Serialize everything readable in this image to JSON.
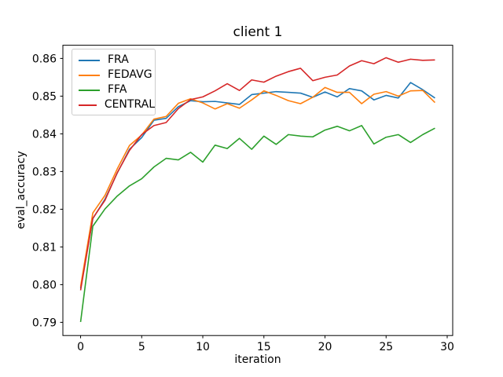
{
  "chart_data": {
    "type": "line",
    "title": "client 1",
    "xlabel": "iteration",
    "ylabel": "eval_accuracy",
    "x": [
      0,
      1,
      2,
      3,
      4,
      5,
      6,
      7,
      8,
      9,
      10,
      11,
      12,
      13,
      14,
      15,
      16,
      17,
      18,
      19,
      20,
      21,
      22,
      23,
      24,
      25,
      26,
      27,
      28,
      29
    ],
    "series": [
      {
        "name": "FRA",
        "color": "#1f77b4",
        "values": [
          0.799,
          0.8175,
          0.8227,
          0.8296,
          0.8359,
          0.839,
          0.8436,
          0.8441,
          0.8472,
          0.8488,
          0.8485,
          0.8486,
          0.8482,
          0.8478,
          0.8504,
          0.8508,
          0.8512,
          0.851,
          0.8508,
          0.8497,
          0.8511,
          0.8498,
          0.852,
          0.8514,
          0.849,
          0.8502,
          0.8495,
          0.8536,
          0.8517,
          0.8495
        ]
      },
      {
        "name": "FEDAVG",
        "color": "#ff7f0e",
        "values": [
          0.7995,
          0.819,
          0.8237,
          0.8307,
          0.8369,
          0.8397,
          0.8439,
          0.8446,
          0.8481,
          0.8493,
          0.8482,
          0.8466,
          0.848,
          0.8468,
          0.849,
          0.8514,
          0.8502,
          0.8488,
          0.848,
          0.8497,
          0.8523,
          0.851,
          0.851,
          0.848,
          0.8505,
          0.8512,
          0.85,
          0.8514,
          0.8515,
          0.8483
        ]
      },
      {
        "name": "FFA",
        "color": "#2ca02c",
        "values": [
          0.7901,
          0.8155,
          0.8201,
          0.8235,
          0.8262,
          0.8281,
          0.8312,
          0.8335,
          0.8331,
          0.8351,
          0.8325,
          0.837,
          0.8361,
          0.8388,
          0.8359,
          0.8394,
          0.8372,
          0.8398,
          0.8394,
          0.8392,
          0.841,
          0.842,
          0.8408,
          0.8422,
          0.8373,
          0.8391,
          0.8398,
          0.8377,
          0.8398,
          0.8415
        ]
      },
      {
        "name": "CENTRAL",
        "color": "#d62728",
        "values": [
          0.7985,
          0.8176,
          0.8224,
          0.8297,
          0.8356,
          0.8398,
          0.8422,
          0.843,
          0.8467,
          0.8491,
          0.8498,
          0.8514,
          0.8533,
          0.8515,
          0.8543,
          0.8537,
          0.8553,
          0.8565,
          0.8574,
          0.8541,
          0.855,
          0.8556,
          0.858,
          0.8594,
          0.8586,
          0.8602,
          0.859,
          0.8598,
          0.8595,
          0.8596
        ]
      }
    ],
    "xticks": [
      0,
      5,
      10,
      15,
      20,
      25,
      30
    ],
    "yticks": [
      0.79,
      0.8,
      0.81,
      0.82,
      0.83,
      0.84,
      0.85,
      0.86
    ],
    "xlim": [
      -1.45,
      30.45
    ],
    "ylim": [
      0.7865,
      0.8635
    ],
    "legend_position": "upper left",
    "grid": false,
    "axis_color": "#000000",
    "legend_border_color": "#cccccc"
  }
}
